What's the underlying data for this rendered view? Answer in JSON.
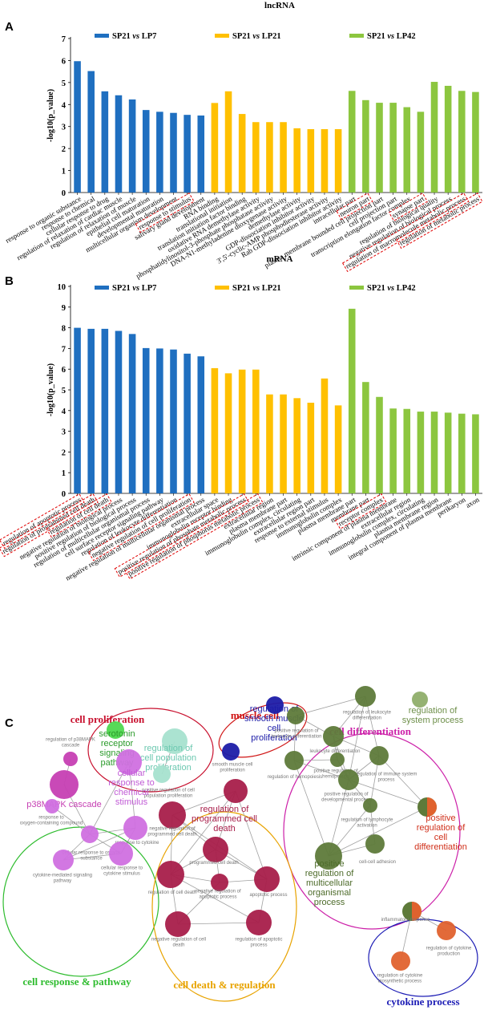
{
  "colors": {
    "blue": "#1f6fc0",
    "yellow": "#ffc000",
    "green": "#8cc63f",
    "highlight": "#e00000",
    "proliferation": "#c8102e",
    "muscle": "#d01414",
    "differentiation": "#cc1fa8",
    "pathway": "#2ebc2e",
    "death": "#e8a300",
    "cytokine": "#1d1db5",
    "node_olive": "#5e7a3a",
    "node_lightolive": "#8fae6a",
    "node_maroon": "#a81e4a",
    "node_magenta": "#c63fb3",
    "node_violet": "#d070e0",
    "node_navy": "#1c1ca8",
    "node_mint": "#a6e2cf",
    "node_lime": "#4fd84f",
    "node_orange": "#e0622e",
    "node_mauve": "#d9a0cc"
  },
  "chart_data": [
    {
      "panel": "A",
      "title": "lncRNA",
      "type": "bar",
      "ylabel": "-log10(p_value)",
      "ylim": [
        0,
        7
      ],
      "yticks": [
        0,
        1,
        2,
        3,
        4,
        5,
        6,
        7
      ],
      "legend": [
        {
          "label": "SP21 vs LP7",
          "color": "#1f6fc0"
        },
        {
          "label": "SP21 vs LP21",
          "color": "#ffc000"
        },
        {
          "label": "SP21 vs LP42",
          "color": "#8cc63f"
        }
      ],
      "categories": [
        "response to organic substance",
        "response to chemical",
        "cellular response to drug",
        "regulation of relaxation of cardiac muscle",
        "regulation of relaxation of muscle",
        "epithelial cell maturation",
        "developmental maturation",
        "multicellular organism development",
        "response to stimulus",
        "salivary gland development",
        "RNA binding",
        "translational initiation",
        "translation initiation factor binding",
        "oxidative RNA demethylase activity",
        "phosphatidylinositol-3-phosphate phosphatase activity",
        "DNA-N1-methyladenine dioxygenase activity",
        "demethylase activity",
        "GDP-dissociation inhibitor activity",
        "3',5'-cyclic-AMP phosphodiesterase activity",
        "Rab GDP-dissociation inhibitor activity",
        "intracellular part",
        "neuron part",
        "plasma membrane bounded cell projection part",
        "cell projection part",
        "transcription elongation factor complex",
        "synapse part",
        "regulation of biological quality",
        "negative regulation of biological process",
        "regulation of macromolecule metabolic process",
        "regulation of metabolic process"
      ],
      "series_index": [
        0,
        0,
        0,
        0,
        0,
        0,
        0,
        0,
        0,
        0,
        1,
        1,
        1,
        1,
        1,
        1,
        1,
        1,
        1,
        1,
        2,
        2,
        2,
        2,
        2,
        2,
        2,
        2,
        2,
        2
      ],
      "values": [
        5.97,
        5.52,
        4.6,
        4.42,
        4.23,
        3.75,
        3.67,
        3.62,
        3.53,
        3.5,
        4.07,
        4.6,
        3.57,
        3.2,
        3.2,
        3.2,
        2.92,
        2.88,
        2.88,
        2.88,
        4.62,
        4.2,
        4.08,
        4.08,
        3.88,
        3.67,
        5.03,
        4.85,
        4.62,
        4.57
      ],
      "highlighted": [
        "response to stimulus",
        "neuron part",
        "synapse part",
        "regulation of macromolecule metabolic process",
        "regulation of metabolic process"
      ]
    },
    {
      "panel": "B",
      "title": "mRNA",
      "type": "bar",
      "ylabel": "-log10(p_value)",
      "ylim": [
        0,
        10
      ],
      "yticks": [
        0,
        1,
        2,
        3,
        4,
        5,
        6,
        7,
        8,
        9,
        10
      ],
      "legend": [
        {
          "label": "SP21 vs LP7",
          "color": "#1f6fc0"
        },
        {
          "label": "SP21 vs LP21",
          "color": "#ffc000"
        },
        {
          "label": "SP21 vs LP42",
          "color": "#8cc63f"
        }
      ],
      "categories": [
        "regulation of apoptotic process",
        "regulation of programmed cell death",
        "regulation of cell death",
        "negative regulation of biological process",
        "positive regulation of biological process",
        "regulation of multicellular organismal process",
        "cell surface receptor signaling pathway",
        "regulation of leukocyte differentiation",
        "negative regulation of cell proliferation",
        "negative regulation of multicellular organismal process",
        "extracellular space",
        "immunoglobulin receptor binding",
        "positive regulation of phosphate metabolic process",
        "positive regulation of phosphorus metabolic process",
        "extracellular region",
        "plasma membrane part",
        "immunoglobulin complex, circulating",
        "extracellular region part",
        "response to external stimulus",
        "immunoglobulin complex",
        "plasma membrane part",
        "membrane part",
        "receptor complex",
        "intrinsic component of plasma membrane",
        "extracellular region",
        "immunoglobulin complex, circulating",
        "plasma membrane region",
        "integral component of plasma membrane",
        "perikaryon",
        "axon"
      ],
      "series_index": [
        0,
        0,
        0,
        0,
        0,
        0,
        0,
        0,
        0,
        0,
        1,
        1,
        1,
        1,
        1,
        1,
        1,
        1,
        1,
        1,
        2,
        2,
        2,
        2,
        2,
        2,
        2,
        2,
        2,
        2
      ],
      "values": [
        8.0,
        7.95,
        7.95,
        7.85,
        7.7,
        7.02,
        7.0,
        6.95,
        6.75,
        6.62,
        6.05,
        5.8,
        5.98,
        5.98,
        4.78,
        4.78,
        4.6,
        4.38,
        5.55,
        4.25,
        8.92,
        5.38,
        4.66,
        4.1,
        4.08,
        3.95,
        3.95,
        3.9,
        3.85,
        3.82
      ],
      "highlighted": [
        "regulation of apoptotic process",
        "regulation of programmed cell death",
        "regulation of cell death",
        "negative regulation of cell proliferation",
        "positive regulation of phosphate metabolic process",
        "positive regulation of phosphorus metabolic process",
        "receptor complex"
      ]
    }
  ],
  "network": {
    "panel": "C",
    "groups": [
      {
        "label": "cell proliferation",
        "color": "#c8102e"
      },
      {
        "label": "muscle cell",
        "color": "#d01414"
      },
      {
        "label": "cell differentiation",
        "color": "#cc1fa8"
      },
      {
        "label": "cell response & pathway",
        "color": "#2ebc2e"
      },
      {
        "label": "cell death & regulation",
        "color": "#e8a300"
      },
      {
        "label": "cytokine process",
        "color": "#1d1db5"
      }
    ],
    "nodes": [
      {
        "id": "n1",
        "label": "serotonin receptor signaling pathway",
        "big": true,
        "color": "#4fd84f"
      },
      {
        "id": "n2",
        "label": "regulation of cell population proliferation",
        "big": true,
        "color": "#a6e2cf"
      },
      {
        "id": "n3",
        "label": "positive regulation of cell population proliferation",
        "big": false,
        "color": "#a6e2cf"
      },
      {
        "id": "n4",
        "label": "regulation of smooth muscle cell proliferation",
        "big": true,
        "color": "#1c1ca8"
      },
      {
        "id": "n5",
        "label": "smooth muscle cell proliferation",
        "big": false,
        "color": "#1c1ca8"
      },
      {
        "id": "n6",
        "label": "regulation of leukocyte differentiation",
        "big": false,
        "color": "#5e7a3a"
      },
      {
        "id": "n7",
        "label": "positive regulation of leukocyte differentiation",
        "big": false,
        "color": "#5e7a3a"
      },
      {
        "id": "n8",
        "label": "regulation of system process",
        "big": true,
        "color": "#8fae6a"
      },
      {
        "id": "n9",
        "label": "leukocyte differentiation",
        "big": false,
        "color": "#5e7a3a"
      },
      {
        "id": "n10",
        "label": "regulation of hemopoiesis",
        "big": false,
        "color": "#5e7a3a"
      },
      {
        "id": "n11",
        "label": "positive regulation of hemopoiesis",
        "big": false,
        "color": "#5e7a3a"
      },
      {
        "id": "n12",
        "label": "regulation of immune system process",
        "big": false,
        "color": "#5e7a3a"
      },
      {
        "id": "n13",
        "label": "positive regulation of developmental process",
        "big": false,
        "color": "#5e7a3a"
      },
      {
        "id": "n14",
        "label": "regulation of lymphocyte activation",
        "big": false,
        "color": "#5e7a3a"
      },
      {
        "id": "n15",
        "label": "positive regulation of cell differentiation",
        "big": true,
        "color": "#e0622e"
      },
      {
        "id": "n16",
        "label": "cell-cell adhesion",
        "big": false,
        "color": "#5e7a3a"
      },
      {
        "id": "n17",
        "label": "positive regulation of multicellular organismal process",
        "big": true,
        "color": "#5e7a3a"
      },
      {
        "id": "n18",
        "label": "regulation of p38MAPK cascade",
        "big": false,
        "color": "#c63fb3"
      },
      {
        "id": "n19",
        "label": "p38MAPK cascade",
        "big": true,
        "color": "#c63fb3"
      },
      {
        "id": "n20",
        "label": "cellular response to chemical stimulus",
        "big": true,
        "color": "#d070e0"
      },
      {
        "id": "n21",
        "label": "response to oxygen-containing compound",
        "big": false,
        "color": "#d070e0"
      },
      {
        "id": "n22",
        "label": "cellular response to organic substance",
        "big": false,
        "color": "#d070e0"
      },
      {
        "id": "n23",
        "label": "response to cytokine",
        "big": false,
        "color": "#d070e0"
      },
      {
        "id": "n24",
        "label": "cytokine-mediated signaling pathway",
        "big": false,
        "color": "#d070e0"
      },
      {
        "id": "n25",
        "label": "cellular response to cytokine stimulus",
        "big": false,
        "color": "#d070e0"
      },
      {
        "id": "n26",
        "label": "regulation of programmed cell death",
        "big": true,
        "color": "#a81e4a"
      },
      {
        "id": "n27",
        "label": "negative regulation of programmed cell death",
        "big": false,
        "color": "#a81e4a"
      },
      {
        "id": "n28",
        "label": "programmed cell death",
        "big": false,
        "color": "#a81e4a"
      },
      {
        "id": "n29",
        "label": "regulation of cell death",
        "big": false,
        "color": "#a81e4a"
      },
      {
        "id": "n30",
        "label": "negative regulation of apoptotic process",
        "big": false,
        "color": "#a81e4a"
      },
      {
        "id": "n31",
        "label": "apoptotic process",
        "big": false,
        "color": "#a81e4a"
      },
      {
        "id": "n32",
        "label": "negative regulation of cell death",
        "big": false,
        "color": "#a81e4a"
      },
      {
        "id": "n33",
        "label": "regulation of apoptotic process",
        "big": false,
        "color": "#a81e4a"
      },
      {
        "id": "n34",
        "label": "inflammatory response",
        "big": false,
        "color": "#5e7a3a"
      },
      {
        "id": "n35",
        "label": "regulation of cytokine production",
        "big": false,
        "color": "#e0622e"
      },
      {
        "id": "n36",
        "label": "regulation of cytokine biosynthetic process",
        "big": false,
        "color": "#e0622e"
      }
    ]
  }
}
